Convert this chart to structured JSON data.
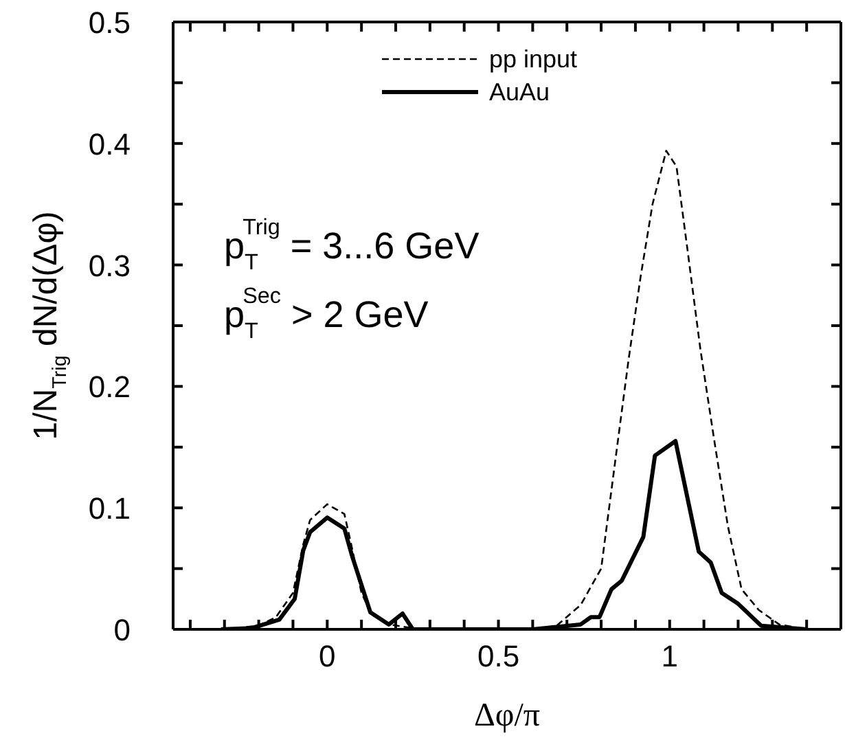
{
  "chart_data": {
    "type": "line",
    "xlabel": "Δφ/π",
    "ylabel": "1/N$_{Trig}$ dN/d(Δφ)",
    "xlim": [
      -0.45,
      1.5
    ],
    "xticks": [
      {
        "value": -0.4,
        "label": null
      },
      {
        "value": -0.3,
        "label": null
      },
      {
        "value": -0.2,
        "label": null
      },
      {
        "value": -0.1,
        "label": null
      },
      0,
      {
        "value": 0.1,
        "label": null
      },
      {
        "value": 0.2,
        "label": null
      },
      {
        "value": 0.3,
        "label": null
      },
      {
        "value": 0.4,
        "label": null
      },
      0.5,
      {
        "value": 0.6,
        "label": null
      },
      {
        "value": 0.7,
        "label": null
      },
      {
        "value": 0.8,
        "label": null
      },
      {
        "value": 0.9,
        "label": null
      },
      1,
      {
        "value": 1.1,
        "label": null
      },
      {
        "value": 1.2,
        "label": null
      },
      {
        "value": 1.3,
        "label": null
      },
      {
        "value": 1.4,
        "label": null
      }
    ],
    "ylim": [
      0,
      0.5
    ],
    "yticks": [
      0,
      {
        "value": 0.05,
        "label": null
      },
      0.1,
      {
        "value": 0.15,
        "label": null
      },
      0.2,
      {
        "value": 0.25,
        "label": null
      },
      0.3,
      {
        "value": 0.35,
        "label": null
      },
      0.4,
      {
        "value": 0.45,
        "label": null
      },
      0.5
    ],
    "legend": "top",
    "grid": false,
    "marker": "none",
    "annotations": [
      "p$_{T}$$^{Trig}$ = 3...6 GeV",
      "p$_{T}$$^{Sec}$ > 2 GeV"
    ],
    "series": [
      {
        "name": "pp input",
        "color": "#000000",
        "line_style": "dashed",
        "x": [
          -0.3,
          -0.2,
          -0.15,
          -0.1,
          -0.07,
          -0.05,
          0,
          0.05,
          0.07,
          0.1,
          0.13,
          0.18,
          0.25,
          0.4,
          0.6,
          0.67,
          0.74,
          0.8,
          0.845,
          0.88,
          0.915,
          0.95,
          0.99,
          1.02,
          1.05,
          1.09,
          1.13,
          1.17,
          1.21,
          1.26,
          1.32,
          1.4
        ],
        "values": [
          0,
          0.003,
          0.01,
          0.03,
          0.07,
          0.09,
          0.103,
          0.095,
          0.07,
          0.03,
          0.012,
          0.004,
          0.001,
          0,
          0,
          0.003,
          0.02,
          0.05,
          0.147,
          0.222,
          0.29,
          0.35,
          0.394,
          0.381,
          0.317,
          0.23,
          0.156,
          0.085,
          0.033,
          0.016,
          0.004,
          0
        ]
      },
      {
        "name": "AuAu",
        "color": "#000000",
        "line_style": "solid",
        "x": [
          -0.31,
          -0.22,
          -0.14,
          -0.095,
          -0.07,
          -0.05,
          0,
          0.05,
          0.073,
          0.126,
          0.18,
          0.22,
          0.25,
          0.4,
          0.6,
          0.74,
          0.77,
          0.795,
          0.83,
          0.86,
          0.923,
          0.957,
          1.017,
          1.085,
          1.12,
          1.152,
          1.2,
          1.267,
          1.4
        ],
        "values": [
          0,
          0.001,
          0.008,
          0.025,
          0.065,
          0.08,
          0.092,
          0.083,
          0.06,
          0.014,
          0.004,
          0.013,
          0,
          0,
          0,
          0.004,
          0.01,
          0.01,
          0.033,
          0.04,
          0.076,
          0.143,
          0.155,
          0.064,
          0.055,
          0.03,
          0.021,
          0.003,
          0
        ]
      }
    ]
  }
}
